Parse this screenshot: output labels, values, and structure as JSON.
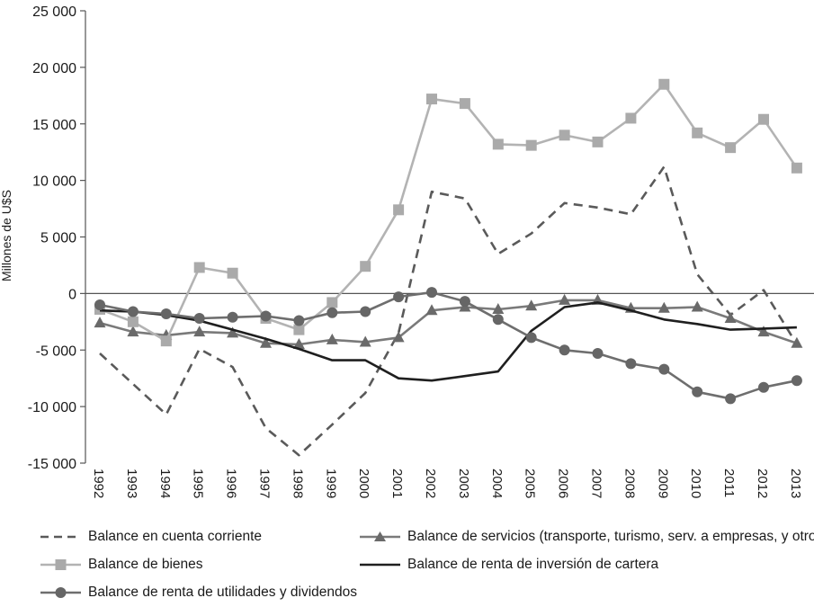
{
  "chart_data": {
    "type": "line",
    "title": "",
    "xlabel": "",
    "ylabel": "Millones de U$S",
    "ylim": [
      -15000,
      25000
    ],
    "yticks": [
      25000,
      20000,
      15000,
      10000,
      5000,
      0,
      -5000,
      -10000,
      -15000
    ],
    "ytick_labels": [
      "25 000",
      "20 000",
      "15 000",
      "10 000",
      "5 000",
      "0",
      "-5 000",
      "-10 000",
      "-15 000"
    ],
    "categories": [
      "1992",
      "1993",
      "1994",
      "1995",
      "1996",
      "1997",
      "1998",
      "1999",
      "2000",
      "2001",
      "2002",
      "2003",
      "2004",
      "2005",
      "2006",
      "2007",
      "2008",
      "2009",
      "2010",
      "2011",
      "2012",
      "2013"
    ],
    "series": [
      {
        "name": "Balance en cuenta corriente",
        "color": "#5a5a5a",
        "style": "dashed",
        "marker": "none",
        "values": [
          -5300,
          -8000,
          -10700,
          -4900,
          -6500,
          -11900,
          -14300,
          -11600,
          -8800,
          -3500,
          9000,
          8400,
          3500,
          5300,
          8000,
          7600,
          7000,
          11200,
          1700,
          -1900,
          300,
          -4500
        ]
      },
      {
        "name": "Balance de servicios (transporte, turismo, serv. a empresas, y otros)",
        "color": "#7a7a7a",
        "style": "solid",
        "marker": "triangle",
        "values": [
          -2600,
          -3400,
          -3700,
          -3400,
          -3500,
          -4400,
          -4500,
          -4100,
          -4300,
          -3900,
          -1500,
          -1200,
          -1400,
          -1100,
          -600,
          -600,
          -1300,
          -1300,
          -1200,
          -2200,
          -3400,
          -4400
        ]
      },
      {
        "name": "Balance de bienes",
        "color": "#b3b3b3",
        "style": "solid",
        "marker": "square",
        "values": [
          -1400,
          -2500,
          -4200,
          2300,
          1800,
          -2200,
          -3200,
          -800,
          2400,
          7400,
          17200,
          16800,
          13200,
          13100,
          14000,
          13400,
          15500,
          18500,
          14200,
          12900,
          15400,
          11100
        ]
      },
      {
        "name": "Balance de renta de inversión de cartera",
        "color": "#1f1f1f",
        "style": "solid",
        "marker": "none",
        "values": [
          -1500,
          -1600,
          -1900,
          -2400,
          -3200,
          -4000,
          -4900,
          -5900,
          -5900,
          -7500,
          -7700,
          -7300,
          -6900,
          -3300,
          -1200,
          -800,
          -1500,
          -2300,
          -2700,
          -3200,
          -3100,
          -3000
        ]
      },
      {
        "name": "Balance de renta de utilidades y dividendos",
        "color": "#6e6e6e",
        "style": "solid",
        "marker": "circle",
        "values": [
          -1000,
          -1600,
          -1800,
          -2200,
          -2100,
          -2000,
          -2400,
          -1700,
          -1600,
          -300,
          100,
          -700,
          -2300,
          -3900,
          -5000,
          -5300,
          -6200,
          -6700,
          -8700,
          -9300,
          -8300,
          -7700
        ]
      }
    ],
    "legend_position": "bottom"
  }
}
